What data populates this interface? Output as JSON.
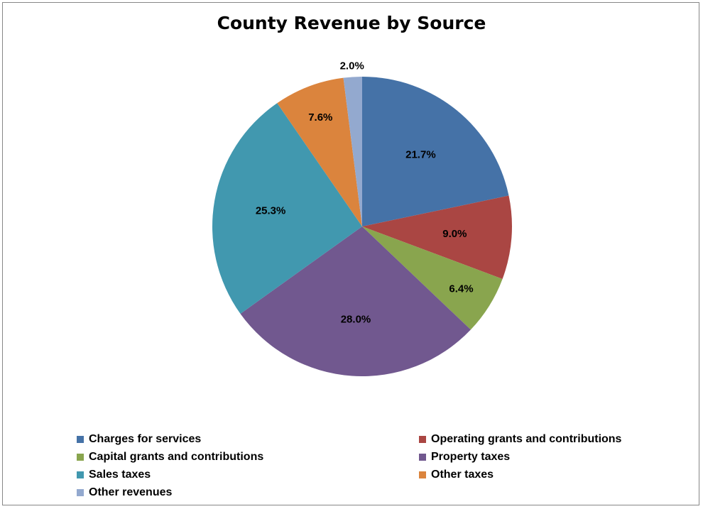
{
  "chart_data": {
    "type": "pie",
    "title": "County Revenue by Source",
    "categories": [
      "Charges for services",
      "Operating grants and contributions",
      "Capital grants and contributions",
      "Property taxes",
      "Sales taxes",
      "Other taxes",
      "Other revenues"
    ],
    "values": [
      21.7,
      9.0,
      6.4,
      28.0,
      25.3,
      7.6,
      2.0
    ],
    "labels": [
      "21.7%",
      "9.0%",
      "6.4%",
      "28.0%",
      "25.3%",
      "7.6%",
      "2.0%"
    ],
    "colors": [
      "#4572A7",
      "#AA4643",
      "#89A54E",
      "#71588F",
      "#4198AF",
      "#DB843D",
      "#93A9CF"
    ],
    "legend_position": "bottom"
  }
}
